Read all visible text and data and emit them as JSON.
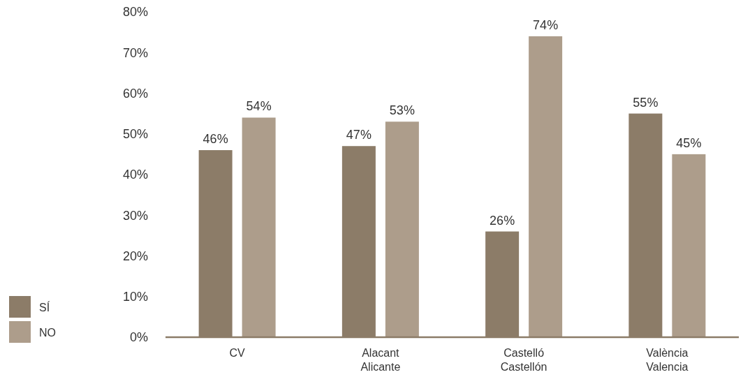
{
  "chart_data": {
    "type": "bar",
    "categories": [
      "CV",
      "Alacant\nAlicante",
      "Castelló\nCastellón",
      "València\nValencia"
    ],
    "series": [
      {
        "name": "SÍ",
        "color": "#8c7c68",
        "values": [
          46,
          47,
          26,
          55
        ],
        "value_labels": [
          "46%",
          "47%",
          "26%",
          "55%"
        ]
      },
      {
        "name": "NO",
        "color": "#ad9d8b",
        "values": [
          54,
          53,
          74,
          45
        ],
        "value_labels": [
          "54%",
          "53%",
          "74%",
          "45%"
        ]
      }
    ],
    "ylim": [
      0,
      80
    ],
    "yticks": [
      {
        "value": 0,
        "label": "0%"
      },
      {
        "value": 10,
        "label": "10%"
      },
      {
        "value": 20,
        "label": "20%"
      },
      {
        "value": 30,
        "label": "30%"
      },
      {
        "value": 40,
        "label": "40%"
      },
      {
        "value": 50,
        "label": "50%"
      },
      {
        "value": 60,
        "label": "60%"
      },
      {
        "value": 70,
        "label": "70%"
      },
      {
        "value": 80,
        "label": "80%"
      }
    ],
    "grid": false,
    "legend": "bottom left"
  }
}
